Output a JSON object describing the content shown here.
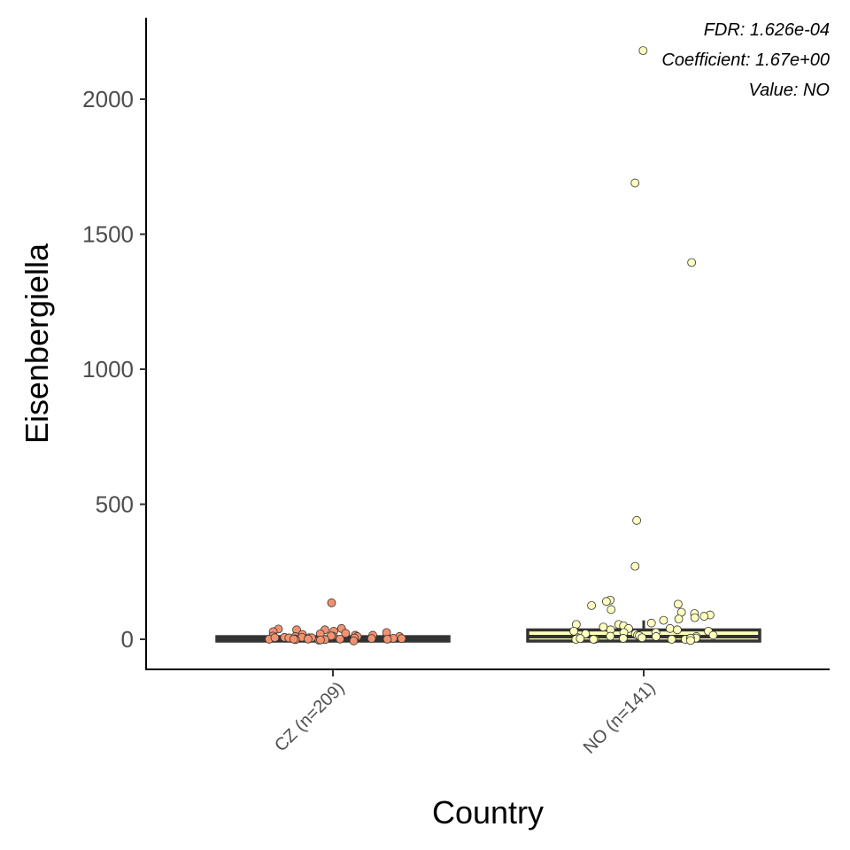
{
  "chart_data": {
    "type": "box",
    "title": "",
    "xlabel": "Country",
    "ylabel": "Eisenbergiella",
    "ylim": [
      -105,
      2300
    ],
    "yticks": [
      0,
      500,
      1000,
      1500,
      2000
    ],
    "categories": [
      "CZ (n=209)",
      "NO (n=141)"
    ],
    "annotations": [
      "FDR: 1.626e-04",
      "Coefficient: 1.67e+00",
      "Value: NO"
    ],
    "grid": false,
    "legend": "none",
    "colors": {
      "CZ": "#f4926f",
      "NO": "#ffffbf",
      "box_line": "#333333"
    },
    "boxes": [
      {
        "category": "CZ (n=209)",
        "q1": 0,
        "median": 0,
        "q3": 3,
        "whisker_low": 0,
        "whisker_high": 7
      },
      {
        "category": "NO (n=141)",
        "q1": 0,
        "median": 10,
        "q3": 28,
        "whisker_low": 0,
        "whisker_high": 70
      }
    ],
    "series": [
      {
        "name": "CZ (n=209)",
        "values": [
          135,
          40,
          38,
          35,
          35,
          30,
          28,
          25,
          22,
          20,
          18,
          15,
          15,
          12,
          12,
          10,
          10,
          8,
          8,
          6,
          5,
          5,
          4,
          3,
          3,
          2,
          2,
          1,
          1,
          0,
          0,
          0,
          0,
          0,
          0,
          0,
          0,
          0,
          0,
          0
        ]
      },
      {
        "name": "NO (n=141)",
        "values": [
          2180,
          1690,
          1395,
          440,
          270,
          145,
          140,
          130,
          125,
          110,
          100,
          95,
          90,
          85,
          80,
          75,
          70,
          60,
          55,
          55,
          50,
          45,
          40,
          40,
          35,
          35,
          30,
          30,
          25,
          25,
          20,
          20,
          15,
          15,
          10,
          10,
          8,
          5,
          5,
          3,
          2,
          1,
          0,
          0,
          0,
          0,
          0,
          0,
          0,
          0
        ]
      }
    ]
  }
}
